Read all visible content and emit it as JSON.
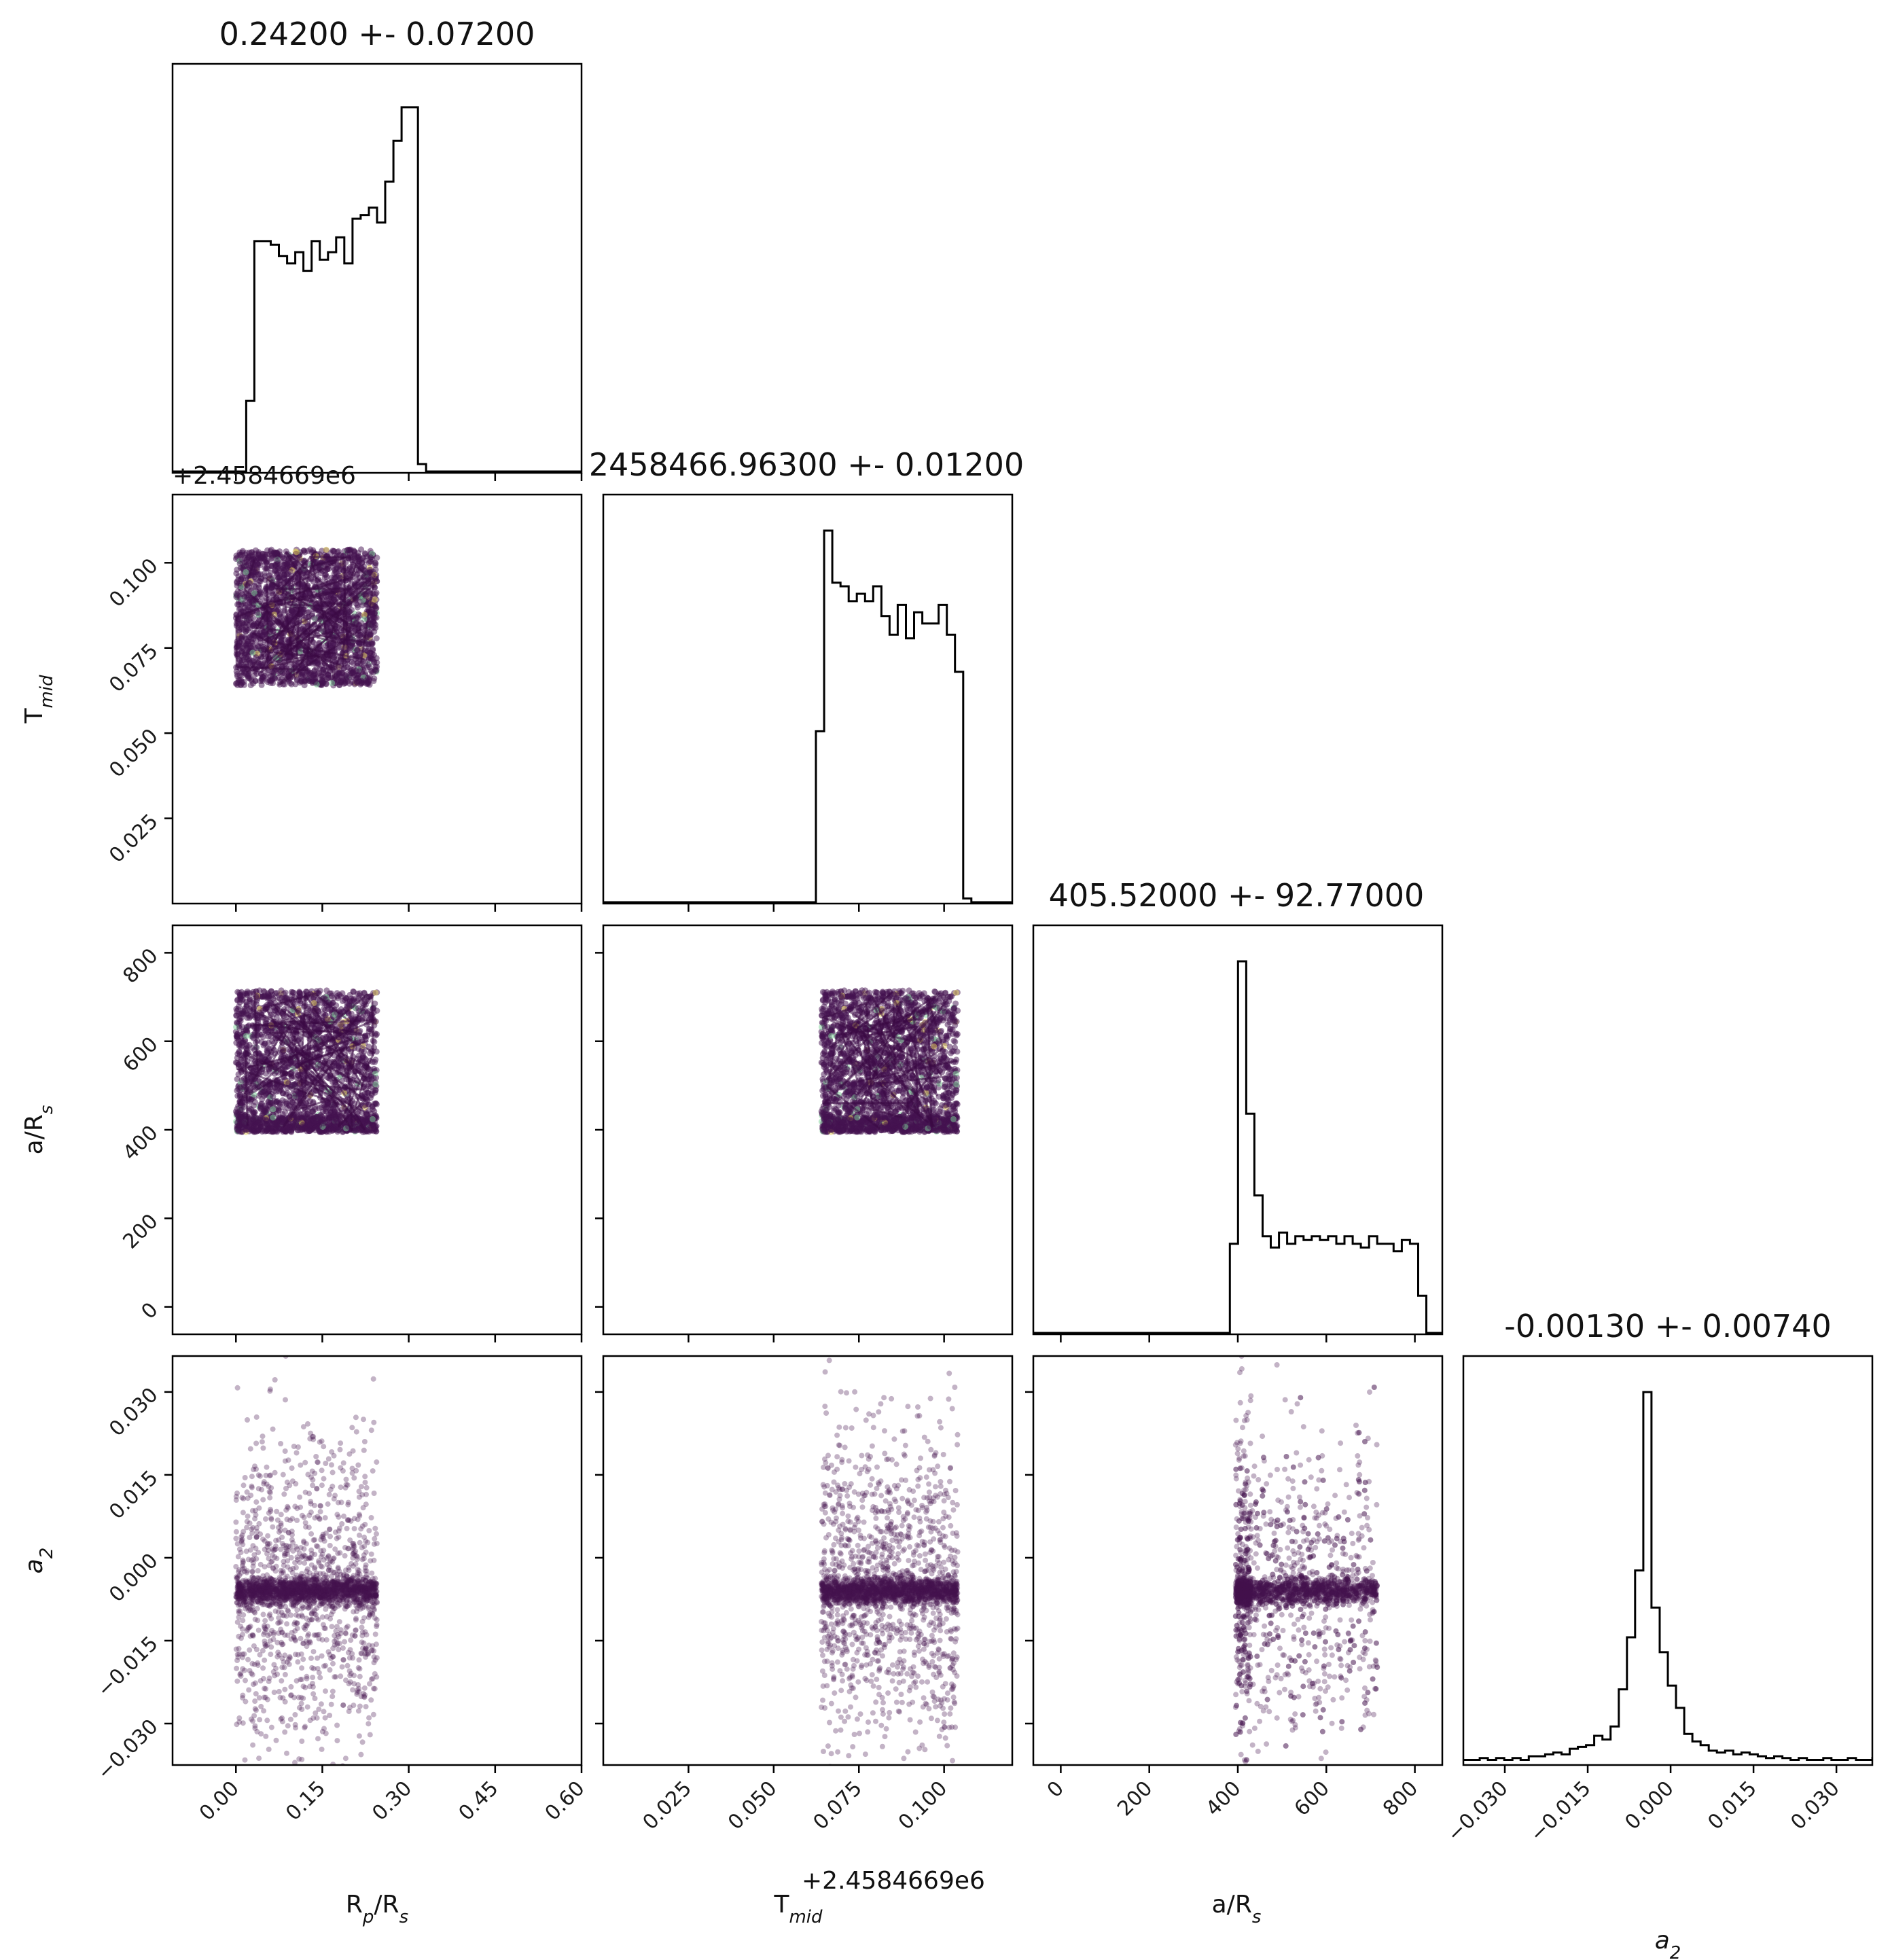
{
  "chart_data": {
    "type": "scatter",
    "kind": "corner-plot",
    "parameters": [
      {
        "key": "rp",
        "label": "R",
        "sub": "p",
        "label2": "/R",
        "sub2": "s"
      },
      {
        "key": "tmid",
        "label": "T",
        "sub": "mid",
        "label2": "",
        "sub2": ""
      },
      {
        "key": "ars",
        "label": "a/R",
        "sub": "s",
        "label2": "",
        "sub2": ""
      },
      {
        "key": "a2",
        "label": "a",
        "sub": "2",
        "label2": "",
        "sub2": "",
        "italic": true
      }
    ],
    "titles": [
      "0.24200 +- 0.07200",
      "2458466.96300 +- 0.01200",
      "405.52000 +- 92.77000",
      "-0.00130 +- 0.00740"
    ],
    "offset_text": "+2.4584669e6",
    "ranges": {
      "rp": [
        -0.11,
        0.6
      ],
      "tmid": [
        0.0,
        0.12
      ],
      "ars": [
        -62,
        862
      ],
      "a2": [
        -0.0375,
        0.0365
      ]
    },
    "ticks": {
      "rp": [
        "0.00",
        "0.15",
        "0.30",
        "0.45",
        "0.60"
      ],
      "tmid": [
        "0.025",
        "0.050",
        "0.075",
        "0.100"
      ],
      "ars": [
        "0",
        "200",
        "400",
        "600",
        "800"
      ],
      "a2": [
        "−0.030",
        "−0.015",
        "0.000",
        "0.015",
        "0.030"
      ]
    },
    "tick_values": {
      "rp": [
        0.0,
        0.15,
        0.3,
        0.45,
        0.6
      ],
      "tmid": [
        0.025,
        0.05,
        0.075,
        0.1
      ],
      "ars": [
        0,
        200,
        400,
        600,
        800
      ],
      "a2": [
        -0.03,
        -0.015,
        0.0,
        0.015,
        0.03
      ]
    },
    "sample_box": {
      "rp": [
        0.0,
        0.245
      ],
      "tmid": [
        0.064,
        0.104
      ],
      "ars": [
        395,
        715
      ],
      "a2_core": [
        -0.0085,
        -0.0035
      ]
    },
    "histograms": {
      "rp": {
        "edges_start": -0.11,
        "bin": 0.0142,
        "heights": [
          0,
          0,
          0,
          0,
          0,
          0,
          0,
          0,
          0,
          0.19,
          0.62,
          0.62,
          0.61,
          0.58,
          0.56,
          0.59,
          0.54,
          0.62,
          0.57,
          0.59,
          0.63,
          0.56,
          0.68,
          0.69,
          0.71,
          0.67,
          0.78,
          0.89,
          0.98,
          0.98,
          0.02,
          0,
          0,
          0,
          0,
          0,
          0,
          0,
          0,
          0,
          0,
          0,
          0,
          0,
          0,
          0,
          0,
          0,
          0,
          0,
          0
        ]
      },
      "tmid": {
        "edges_start": 0.0,
        "bin": 0.0024,
        "heights": [
          0,
          0,
          0,
          0,
          0,
          0,
          0,
          0,
          0,
          0,
          0,
          0,
          0,
          0,
          0,
          0,
          0,
          0,
          0,
          0,
          0,
          0,
          0,
          0,
          0,
          0,
          0.46,
          1.0,
          0.86,
          0.85,
          0.81,
          0.83,
          0.81,
          0.85,
          0.77,
          0.72,
          0.8,
          0.71,
          0.78,
          0.75,
          0.75,
          0.8,
          0.72,
          0.62,
          0.01,
          0,
          0,
          0,
          0,
          0
        ]
      },
      "ars": {
        "edges_start": -62,
        "bin": 18.5,
        "heights": [
          0,
          0,
          0,
          0,
          0,
          0,
          0,
          0,
          0,
          0,
          0,
          0,
          0,
          0,
          0,
          0,
          0,
          0,
          0,
          0,
          0,
          0,
          0,
          0,
          0.24,
          1.0,
          0.59,
          0.37,
          0.26,
          0.23,
          0.27,
          0.24,
          0.26,
          0.25,
          0.26,
          0.25,
          0.26,
          0.24,
          0.26,
          0.24,
          0.23,
          0.26,
          0.24,
          0.24,
          0.22,
          0.25,
          0.24,
          0.1,
          0,
          0,
          0
        ]
      },
      "a2": {
        "edges_start": -0.0375,
        "bin": 0.00148,
        "heights": [
          0.01,
          0.01,
          0.015,
          0.01,
          0.015,
          0.01,
          0.015,
          0.01,
          0.02,
          0.02,
          0.025,
          0.03,
          0.025,
          0.04,
          0.045,
          0.05,
          0.075,
          0.065,
          0.1,
          0.2,
          0.34,
          0.52,
          1.0,
          0.42,
          0.3,
          0.21,
          0.15,
          0.08,
          0.06,
          0.05,
          0.035,
          0.03,
          0.035,
          0.025,
          0.03,
          0.025,
          0.02,
          0.015,
          0.02,
          0.015,
          0.01,
          0.015,
          0.01,
          0.01,
          0.015,
          0.01,
          0.01,
          0.015,
          0.01,
          0.01,
          0.015
        ]
      }
    }
  },
  "colors": {
    "sample_dot": "#44124f",
    "sample_dark": "#3a0a44",
    "highlight_green": "#7fd39a",
    "highlight_yellow": "#e8d35a",
    "axis": "#000000"
  }
}
